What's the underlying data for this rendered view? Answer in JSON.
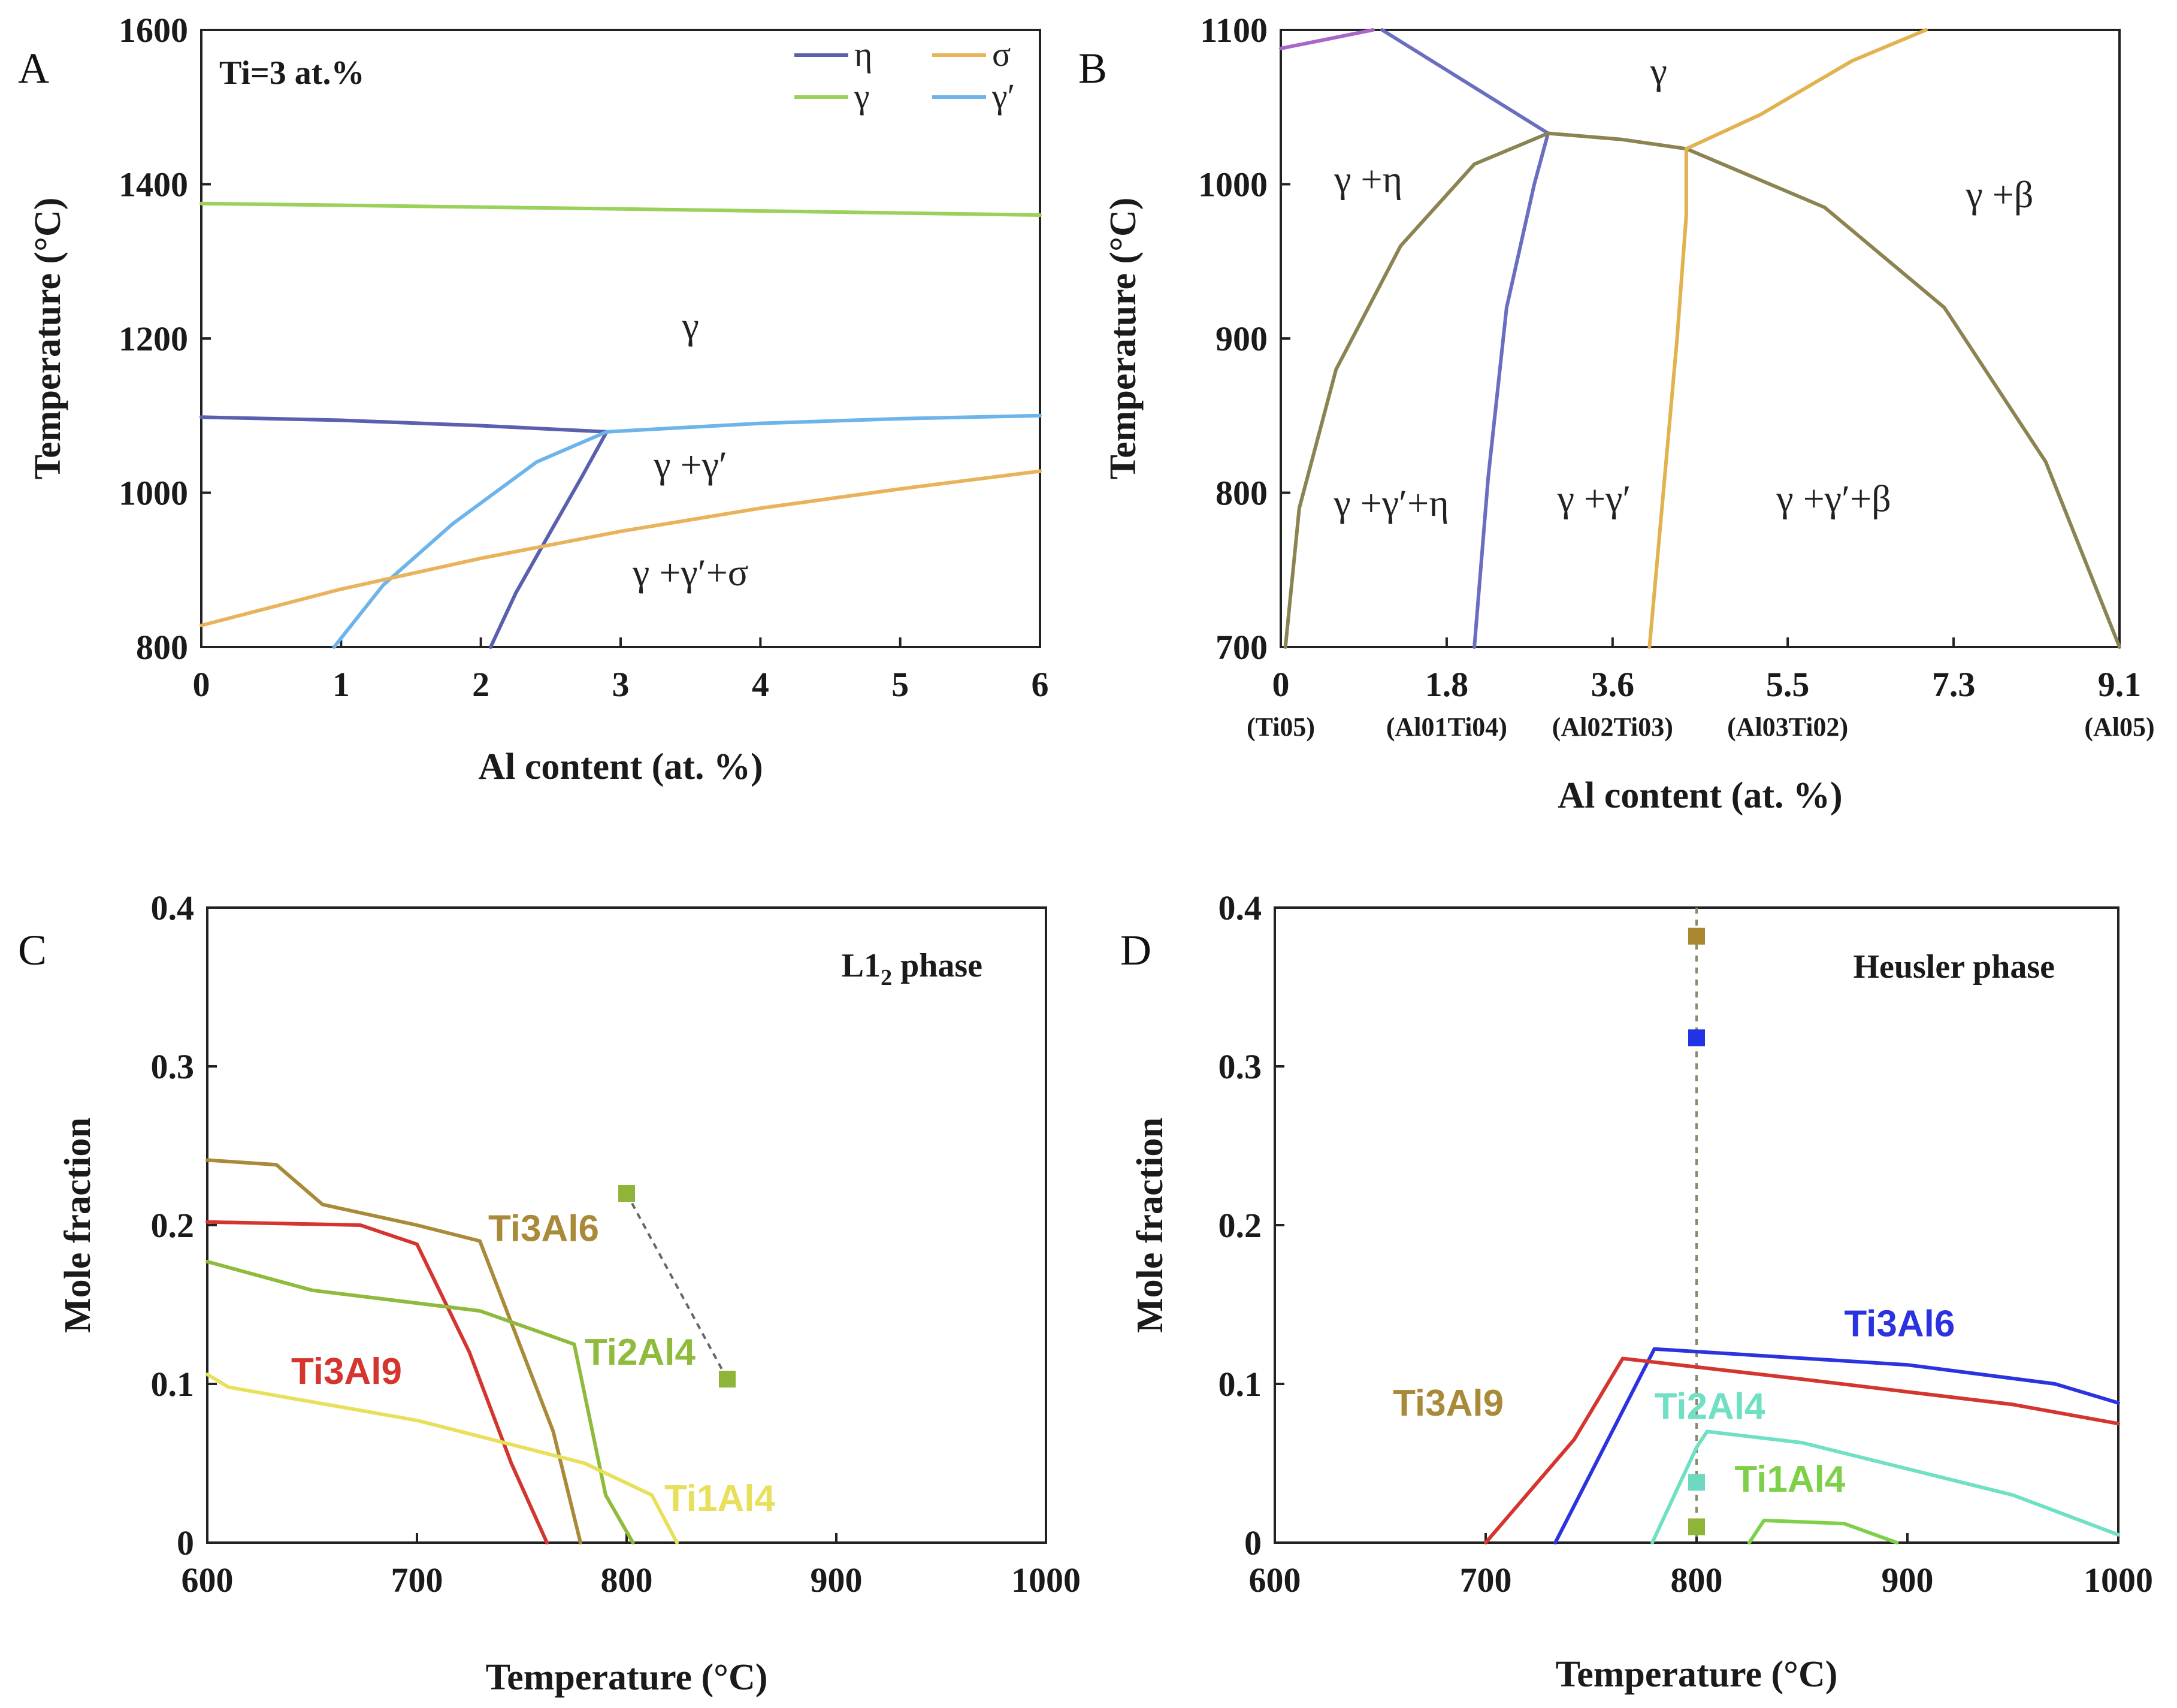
{
  "colors": {
    "eta": "#5a5fae",
    "sigma": "#e8b35c",
    "gamma": "#9bd05a",
    "gamma_prime": "#6cb4ea",
    "boundary": "#8b8452",
    "eta_boundary": "#6a6ec0",
    "sigma_boundary": "#e2b24f",
    "top_left": "#a866c8",
    "red": "#d4352f",
    "brown": "#a88a38",
    "green": "#8fba3c",
    "yellow": "#e8e05a",
    "blue": "#2b32e0",
    "cyan": "#6fe0c4",
    "lightgreen": "#7ed04a",
    "marker_brown": "#a8872e",
    "marker_blue": "#2233e6",
    "marker_cyan": "#6fd8c0",
    "marker_green": "#8fb43a"
  },
  "chart_data": [
    {
      "panel": "A",
      "type": "line",
      "xlabel": "Al content (at. %)",
      "ylabel": "Temperature (°C)",
      "xlim": [
        0,
        6
      ],
      "ylim": [
        800,
        1600
      ],
      "xticks": [
        "0",
        "1",
        "2",
        "3",
        "4",
        "5",
        "6"
      ],
      "yticks": [
        "800",
        "1000",
        "1200",
        "1400",
        "1600"
      ],
      "annotation": "Ti=3 at.%",
      "legend": [
        {
          "label": "η",
          "color_key": "eta"
        },
        {
          "label": "σ",
          "color_key": "sigma"
        },
        {
          "label": "γ",
          "color_key": "gamma"
        },
        {
          "label": "γ′",
          "color_key": "gamma_prime"
        }
      ],
      "regions": [
        {
          "label": "γ",
          "x": 3.5,
          "y": 1200
        },
        {
          "label": "γ +γ′",
          "x": 3.5,
          "y": 1020
        },
        {
          "label": "γ +γ′+σ",
          "x": 3.5,
          "y": 880
        }
      ],
      "series": [
        {
          "name": "γ solvus",
          "color_key": "gamma",
          "points": [
            [
              0,
              1375
            ],
            [
              3,
              1368
            ],
            [
              6,
              1360
            ]
          ]
        },
        {
          "name": "η upper",
          "color_key": "eta",
          "points": [
            [
              0,
              1098
            ],
            [
              1,
              1094
            ],
            [
              2,
              1087
            ],
            [
              2.9,
              1079
            ]
          ]
        },
        {
          "name": "η lower",
          "color_key": "eta",
          "points": [
            [
              2.07,
              800
            ],
            [
              2.25,
              870
            ],
            [
              2.5,
              950
            ],
            [
              2.72,
              1020
            ],
            [
              2.9,
              1079
            ]
          ]
        },
        {
          "name": "γ′ upper",
          "color_key": "gamma_prime",
          "points": [
            [
              2.9,
              1079
            ],
            [
              4,
              1090
            ],
            [
              5,
              1096
            ],
            [
              6,
              1100
            ]
          ]
        },
        {
          "name": "γ′ lower",
          "color_key": "gamma_prime",
          "points": [
            [
              0.95,
              800
            ],
            [
              1.3,
              880
            ],
            [
              1.8,
              960
            ],
            [
              2.4,
              1040
            ],
            [
              2.9,
              1079
            ]
          ]
        },
        {
          "name": "σ",
          "color_key": "sigma",
          "points": [
            [
              0,
              828
            ],
            [
              1,
              875
            ],
            [
              2,
              915
            ],
            [
              3,
              950
            ],
            [
              4,
              980
            ],
            [
              5,
              1005
            ],
            [
              6,
              1028
            ]
          ]
        }
      ]
    },
    {
      "panel": "B",
      "type": "line",
      "xlabel": "Al content (at. %)",
      "ylabel": "Temperature (°C)",
      "xlim": [
        0,
        9.1
      ],
      "ylim": [
        700,
        1100
      ],
      "xticks": [
        "0",
        "1.8",
        "3.6",
        "5.5",
        "7.3",
        "9.1"
      ],
      "xtick_values": [
        0,
        1.8,
        3.6,
        5.5,
        7.3,
        9.1
      ],
      "xsublabels": [
        "(Ti05)",
        "(Al01Ti04)",
        "(Al02Ti03)",
        "(Al03Ti02)",
        "(Al05)"
      ],
      "xsublabel_values": [
        0,
        1.8,
        3.6,
        5.5,
        9.1
      ],
      "yticks": [
        "700",
        "800",
        "900",
        "1000",
        "1100"
      ],
      "regions": [
        {
          "label": "γ",
          "x": 4.1,
          "y": 1065
        },
        {
          "label": "γ +η",
          "x": 0.95,
          "y": 995
        },
        {
          "label": "γ +β",
          "x": 7.8,
          "y": 985
        },
        {
          "label": "γ +γ′+η",
          "x": 1.2,
          "y": 785
        },
        {
          "label": "γ +γ′",
          "x": 3.4,
          "y": 788
        },
        {
          "label": "γ +γ′+β",
          "x": 6,
          "y": 788
        }
      ],
      "series": [
        {
          "name": "top-left",
          "color_key": "top_left",
          "points": [
            [
              0,
              1088
            ],
            [
              0.5,
              1094
            ],
            [
              1,
              1100
            ]
          ]
        },
        {
          "name": "η upper",
          "color_key": "eta_boundary",
          "points": [
            [
              1.1,
              1100
            ],
            [
              2.9,
              1033
            ]
          ]
        },
        {
          "name": "η lower",
          "color_key": "eta_boundary",
          "points": [
            [
              2.1,
              700
            ],
            [
              2.25,
              810
            ],
            [
              2.45,
              920
            ],
            [
              2.75,
              1000
            ],
            [
              2.9,
              1033
            ]
          ]
        },
        {
          "name": "left boundary",
          "color_key": "boundary",
          "points": [
            [
              0.05,
              700
            ],
            [
              0.2,
              790
            ],
            [
              0.6,
              880
            ],
            [
              1.3,
              960
            ],
            [
              2.1,
              1013
            ],
            [
              2.9,
              1033
            ]
          ]
        },
        {
          "name": "top boundary",
          "color_key": "boundary",
          "points": [
            [
              2.9,
              1033
            ],
            [
              3.7,
              1029
            ],
            [
              4.4,
              1023
            ]
          ]
        },
        {
          "name": "right boundary",
          "color_key": "boundary",
          "points": [
            [
              4.4,
              1023
            ],
            [
              5.9,
              985
            ],
            [
              7.2,
              920
            ],
            [
              8.3,
              820
            ],
            [
              9.1,
              700
            ]
          ]
        },
        {
          "name": "σ upper",
          "color_key": "sigma_boundary",
          "points": [
            [
              4.4,
              1023
            ],
            [
              5.2,
              1045
            ],
            [
              6.2,
              1080
            ],
            [
              7.0,
              1100
            ]
          ]
        },
        {
          "name": "σ lower",
          "color_key": "sigma_boundary",
          "points": [
            [
              4.0,
              700
            ],
            [
              4.15,
              800
            ],
            [
              4.3,
              900
            ],
            [
              4.4,
              980
            ],
            [
              4.4,
              1023
            ]
          ]
        }
      ]
    },
    {
      "panel": "C",
      "type": "line",
      "title": "L1",
      "title_subscript": "2",
      "title_suffix": " phase",
      "xlabel": "Temperature (°C)",
      "ylabel": "Mole fraction",
      "xlim": [
        600,
        1000
      ],
      "ylim": [
        0,
        0.4
      ],
      "xticks": [
        "600",
        "700",
        "800",
        "900",
        "1000"
      ],
      "yticks": [
        "0",
        "0.1",
        "0.2",
        "0.3",
        "0.4"
      ],
      "series": [
        {
          "name": "Ti3Al6",
          "color_key": "brown",
          "points": [
            [
              600,
              0.241
            ],
            [
              633,
              0.238
            ],
            [
              655,
              0.213
            ],
            [
              700,
              0.2
            ],
            [
              730,
              0.19
            ],
            [
              765,
              0.07
            ],
            [
              778,
              0
            ]
          ]
        },
        {
          "name": "Ti3Al9",
          "color_key": "red",
          "points": [
            [
              600,
              0.202
            ],
            [
              673,
              0.2
            ],
            [
              700,
              0.188
            ],
            [
              725,
              0.12
            ],
            [
              745,
              0.05
            ],
            [
              762,
              0
            ]
          ]
        },
        {
          "name": "Ti2Al4",
          "color_key": "green",
          "points": [
            [
              600,
              0.177
            ],
            [
              650,
              0.159
            ],
            [
              730,
              0.146
            ],
            [
              775,
              0.125
            ],
            [
              790,
              0.03
            ],
            [
              803,
              0
            ]
          ]
        },
        {
          "name": "Ti1Al4",
          "color_key": "yellow",
          "points": [
            [
              600,
              0.106
            ],
            [
              610,
              0.098
            ],
            [
              700,
              0.077
            ],
            [
              780,
              0.05
            ],
            [
              812,
              0.03
            ],
            [
              824,
              0
            ]
          ]
        }
      ],
      "markers": [
        {
          "x": 800,
          "y": 0.22,
          "color_key": "marker_green"
        },
        {
          "x": 848,
          "y": 0.103,
          "color_key": "marker_green"
        }
      ],
      "labels": [
        {
          "text": "Ti3Al6",
          "x": 734,
          "y": 0.19,
          "color_key": "brown"
        },
        {
          "text": "Ti3Al9",
          "x": 640,
          "y": 0.1,
          "color_key": "red"
        },
        {
          "text": "Ti2Al4",
          "x": 780,
          "y": 0.112,
          "color_key": "green"
        },
        {
          "text": "Ti1Al4",
          "x": 818,
          "y": 0.02,
          "color_key": "yellow"
        }
      ]
    },
    {
      "panel": "D",
      "type": "line",
      "title": "Heusler phase",
      "xlabel": "Temperature (°C)",
      "ylabel": "Mole fraction",
      "xlim": [
        600,
        1000
      ],
      "ylim": [
        0,
        0.4
      ],
      "xticks": [
        "600",
        "700",
        "800",
        "900",
        "1000"
      ],
      "yticks": [
        "0",
        "0.1",
        "0.2",
        "0.3",
        "0.4"
      ],
      "series": [
        {
          "name": "Ti3Al6",
          "color_key": "blue",
          "points": [
            [
              733,
              0
            ],
            [
              780,
              0.122
            ],
            [
              900,
              0.112
            ],
            [
              970,
              0.1
            ],
            [
              1000,
              0.088
            ]
          ]
        },
        {
          "name": "Ti3Al9",
          "color_key": "red",
          "points": [
            [
              700,
              0
            ],
            [
              742,
              0.065
            ],
            [
              765,
              0.116
            ],
            [
              850,
              0.103
            ],
            [
              950,
              0.087
            ],
            [
              1000,
              0.075
            ]
          ]
        },
        {
          "name": "Ti2Al4",
          "color_key": "cyan",
          "points": [
            [
              779,
              0
            ],
            [
              800,
              0.06
            ],
            [
              805,
              0.07
            ],
            [
              850,
              0.063
            ],
            [
              950,
              0.03
            ],
            [
              1000,
              0.005
            ]
          ]
        },
        {
          "name": "Ti1Al4",
          "color_key": "lightgreen",
          "points": [
            [
              825,
              0
            ],
            [
              832,
              0.014
            ],
            [
              870,
              0.012
            ],
            [
              895,
              0
            ]
          ]
        }
      ],
      "markers": [
        {
          "x": 800,
          "y": 0.382,
          "color_key": "marker_brown"
        },
        {
          "x": 800,
          "y": 0.318,
          "color_key": "marker_blue"
        },
        {
          "x": 800,
          "y": 0.038,
          "color_key": "marker_cyan"
        },
        {
          "x": 800,
          "y": 0.01,
          "color_key": "marker_green"
        }
      ],
      "vline_x": 800,
      "labels": [
        {
          "text": "Ti3Al6",
          "x": 870,
          "y": 0.13,
          "color_key": "blue"
        },
        {
          "text": "Ti3Al9",
          "x": 656,
          "y": 0.08,
          "color_key": "brown"
        },
        {
          "text": "Ti2Al4",
          "x": 780,
          "y": 0.078,
          "color_key": "cyan"
        },
        {
          "text": "Ti1Al4",
          "x": 818,
          "y": 0.032,
          "color_key": "lightgreen"
        }
      ]
    }
  ]
}
